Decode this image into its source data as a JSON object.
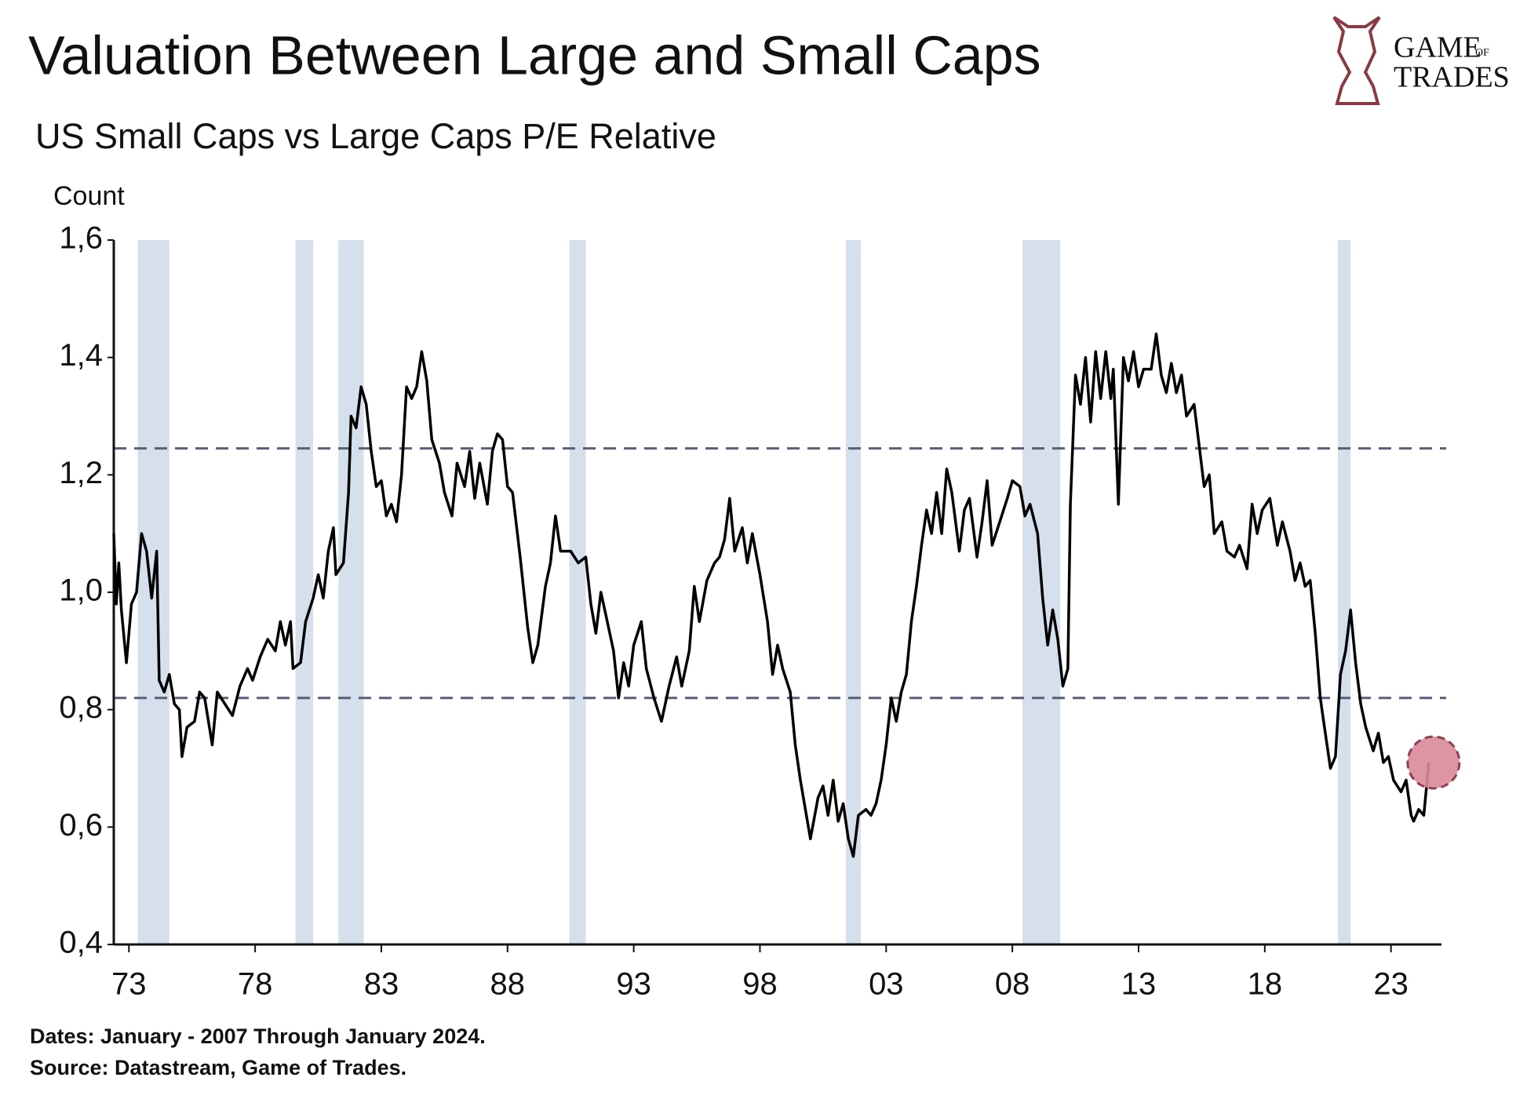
{
  "chart_data": {
    "type": "line",
    "title": "Valuation Between Large and Small Caps",
    "subtitle": "US Small Caps vs Large Caps P/E Relative",
    "y_label": "Count",
    "notes": [
      "Dates: January - 2007 Through January 2024.",
      "Source: Datastream, Game of Trades."
    ],
    "logo": {
      "line1": "GAME",
      "small": "OF",
      "line2": "TRADES"
    },
    "color": "#000000",
    "shade_color": "#d6dfec",
    "reference_color": "#5a5f78",
    "highlight_color": "#d98a9a",
    "xlim": [
      1972.4,
      2025
    ],
    "ylim": [
      0.4,
      1.6
    ],
    "xticks": [
      {
        "value": 1973,
        "label": "73"
      },
      {
        "value": 1978,
        "label": "78"
      },
      {
        "value": 1983,
        "label": "83"
      },
      {
        "value": 1988,
        "label": "88"
      },
      {
        "value": 1993,
        "label": "93"
      },
      {
        "value": 1998,
        "label": "98"
      },
      {
        "value": 2003,
        "label": "03"
      },
      {
        "value": 2008,
        "label": "08"
      },
      {
        "value": 2013,
        "label": "13"
      },
      {
        "value": 2018,
        "label": "18"
      },
      {
        "value": 2023,
        "label": "23"
      }
    ],
    "yticks": [
      {
        "value": 0.4,
        "label": "0,4"
      },
      {
        "value": 0.6,
        "label": "0,6"
      },
      {
        "value": 0.8,
        "label": "0,8"
      },
      {
        "value": 1.0,
        "label": "1,0"
      },
      {
        "value": 1.2,
        "label": "1,2"
      },
      {
        "value": 1.4,
        "label": "1,4"
      },
      {
        "value": 1.6,
        "label": "1,6"
      }
    ],
    "reference_lines": [
      1.245,
      0.82
    ],
    "shaded_ranges": [
      [
        1973.35,
        1974.6
      ],
      [
        1979.6,
        1980.3
      ],
      [
        1981.3,
        1982.3
      ],
      [
        1990.45,
        1991.1
      ],
      [
        2001.4,
        2002.0
      ],
      [
        2008.4,
        2009.9
      ],
      [
        2020.9,
        2021.4
      ]
    ],
    "x": [
      1972.4,
      1972.5,
      1972.6,
      1972.7,
      1972.9,
      1973.1,
      1973.3,
      1973.5,
      1973.7,
      1973.9,
      1974.1,
      1974.2,
      1974.4,
      1974.6,
      1974.8,
      1975.0,
      1975.1,
      1975.3,
      1975.6,
      1975.8,
      1976.0,
      1976.3,
      1976.5,
      1976.8,
      1977.1,
      1977.4,
      1977.7,
      1977.9,
      1978.2,
      1978.5,
      1978.8,
      1979.0,
      1979.2,
      1979.4,
      1979.5,
      1979.8,
      1980.0,
      1980.3,
      1980.5,
      1980.7,
      1980.9,
      1981.1,
      1981.2,
      1981.5,
      1981.7,
      1981.8,
      1982.0,
      1982.2,
      1982.4,
      1982.6,
      1982.8,
      1983.0,
      1983.2,
      1983.4,
      1983.6,
      1983.8,
      1984.0,
      1984.2,
      1984.4,
      1984.6,
      1984.8,
      1985.0,
      1985.3,
      1985.5,
      1985.8,
      1986.0,
      1986.3,
      1986.5,
      1986.7,
      1986.9,
      1987.2,
      1987.4,
      1987.6,
      1987.8,
      1988.0,
      1988.2,
      1988.5,
      1988.8,
      1989.0,
      1989.2,
      1989.5,
      1989.7,
      1989.9,
      1990.1,
      1990.5,
      1990.8,
      1991.1,
      1991.3,
      1991.5,
      1991.7,
      1991.9,
      1992.2,
      1992.4,
      1992.6,
      1992.8,
      1993.0,
      1993.3,
      1993.5,
      1993.8,
      1994.1,
      1994.4,
      1994.7,
      1994.9,
      1995.2,
      1995.4,
      1995.6,
      1995.9,
      1996.2,
      1996.4,
      1996.6,
      1996.8,
      1997.0,
      1997.3,
      1997.5,
      1997.7,
      1998.0,
      1998.3,
      1998.5,
      1998.7,
      1998.9,
      1999.2,
      1999.4,
      1999.6,
      1999.8,
      2000.0,
      2000.3,
      2000.5,
      2000.7,
      2000.9,
      2001.1,
      2001.3,
      2001.5,
      2001.7,
      2001.9,
      2002.2,
      2002.4,
      2002.6,
      2002.8,
      2003.0,
      2003.2,
      2003.4,
      2003.6,
      2003.8,
      2004.0,
      2004.2,
      2004.4,
      2004.6,
      2004.8,
      2005.0,
      2005.2,
      2005.4,
      2005.6,
      2005.9,
      2006.1,
      2006.3,
      2006.6,
      2006.8,
      2007.0,
      2007.2,
      2007.5,
      2007.8,
      2008.0,
      2008.3,
      2008.5,
      2008.7,
      2009.0,
      2009.2,
      2009.4,
      2009.6,
      2009.8,
      2010.0,
      2010.2,
      2010.3,
      2010.5,
      2010.7,
      2010.9,
      2011.1,
      2011.3,
      2011.5,
      2011.7,
      2011.9,
      2012.0,
      2012.2,
      2012.4,
      2012.6,
      2012.8,
      2013.0,
      2013.2,
      2013.5,
      2013.7,
      2013.9,
      2014.1,
      2014.3,
      2014.5,
      2014.7,
      2014.9,
      2015.2,
      2015.4,
      2015.6,
      2015.8,
      2016.0,
      2016.3,
      2016.5,
      2016.8,
      2017.0,
      2017.3,
      2017.5,
      2017.7,
      2017.9,
      2018.2,
      2018.5,
      2018.7,
      2019.0,
      2019.2,
      2019.4,
      2019.6,
      2019.8,
      2020.0,
      2020.2,
      2020.4,
      2020.6,
      2020.8,
      2021.0,
      2021.2,
      2021.4,
      2021.6,
      2021.8,
      2022.0,
      2022.3,
      2022.5,
      2022.7,
      2022.9,
      2023.1,
      2023.4,
      2023.6,
      2023.8,
      2023.9,
      2024.1,
      2024.3,
      2024.5
    ],
    "values": [
      1.1,
      0.98,
      1.05,
      0.97,
      0.88,
      0.98,
      1.0,
      1.1,
      1.07,
      0.99,
      1.07,
      0.85,
      0.83,
      0.86,
      0.81,
      0.8,
      0.72,
      0.77,
      0.78,
      0.83,
      0.82,
      0.74,
      0.83,
      0.81,
      0.79,
      0.84,
      0.87,
      0.85,
      0.89,
      0.92,
      0.9,
      0.95,
      0.91,
      0.95,
      0.87,
      0.88,
      0.95,
      0.99,
      1.03,
      0.99,
      1.07,
      1.11,
      1.03,
      1.05,
      1.17,
      1.3,
      1.28,
      1.35,
      1.32,
      1.24,
      1.18,
      1.19,
      1.13,
      1.15,
      1.12,
      1.2,
      1.35,
      1.33,
      1.35,
      1.41,
      1.36,
      1.26,
      1.22,
      1.17,
      1.13,
      1.22,
      1.18,
      1.24,
      1.16,
      1.22,
      1.15,
      1.24,
      1.27,
      1.26,
      1.18,
      1.17,
      1.06,
      0.94,
      0.88,
      0.91,
      1.01,
      1.05,
      1.13,
      1.07,
      1.07,
      1.05,
      1.06,
      0.98,
      0.93,
      1.0,
      0.96,
      0.9,
      0.82,
      0.88,
      0.84,
      0.91,
      0.95,
      0.87,
      0.82,
      0.78,
      0.84,
      0.89,
      0.84,
      0.9,
      1.01,
      0.95,
      1.02,
      1.05,
      1.06,
      1.09,
      1.16,
      1.07,
      1.11,
      1.05,
      1.1,
      1.03,
      0.95,
      0.86,
      0.91,
      0.87,
      0.83,
      0.74,
      0.68,
      0.63,
      0.58,
      0.65,
      0.67,
      0.62,
      0.68,
      0.61,
      0.64,
      0.58,
      0.55,
      0.62,
      0.63,
      0.62,
      0.64,
      0.68,
      0.74,
      0.82,
      0.78,
      0.83,
      0.86,
      0.95,
      1.01,
      1.08,
      1.14,
      1.1,
      1.17,
      1.1,
      1.21,
      1.17,
      1.07,
      1.14,
      1.16,
      1.06,
      1.12,
      1.19,
      1.08,
      1.12,
      1.16,
      1.19,
      1.18,
      1.13,
      1.15,
      1.1,
      0.99,
      0.91,
      0.97,
      0.92,
      0.84,
      0.87,
      1.15,
      1.37,
      1.32,
      1.4,
      1.29,
      1.41,
      1.33,
      1.41,
      1.33,
      1.38,
      1.15,
      1.4,
      1.36,
      1.41,
      1.35,
      1.38,
      1.38,
      1.44,
      1.37,
      1.34,
      1.39,
      1.34,
      1.37,
      1.3,
      1.32,
      1.25,
      1.18,
      1.2,
      1.1,
      1.12,
      1.07,
      1.06,
      1.08,
      1.04,
      1.15,
      1.1,
      1.14,
      1.16,
      1.08,
      1.12,
      1.07,
      1.02,
      1.05,
      1.01,
      1.02,
      0.93,
      0.82,
      0.76,
      0.7,
      0.72,
      0.86,
      0.9,
      0.97,
      0.88,
      0.81,
      0.77,
      0.73,
      0.76,
      0.71,
      0.72,
      0.68,
      0.66,
      0.68,
      0.62,
      0.61,
      0.63,
      0.62,
      0.71
    ]
  }
}
